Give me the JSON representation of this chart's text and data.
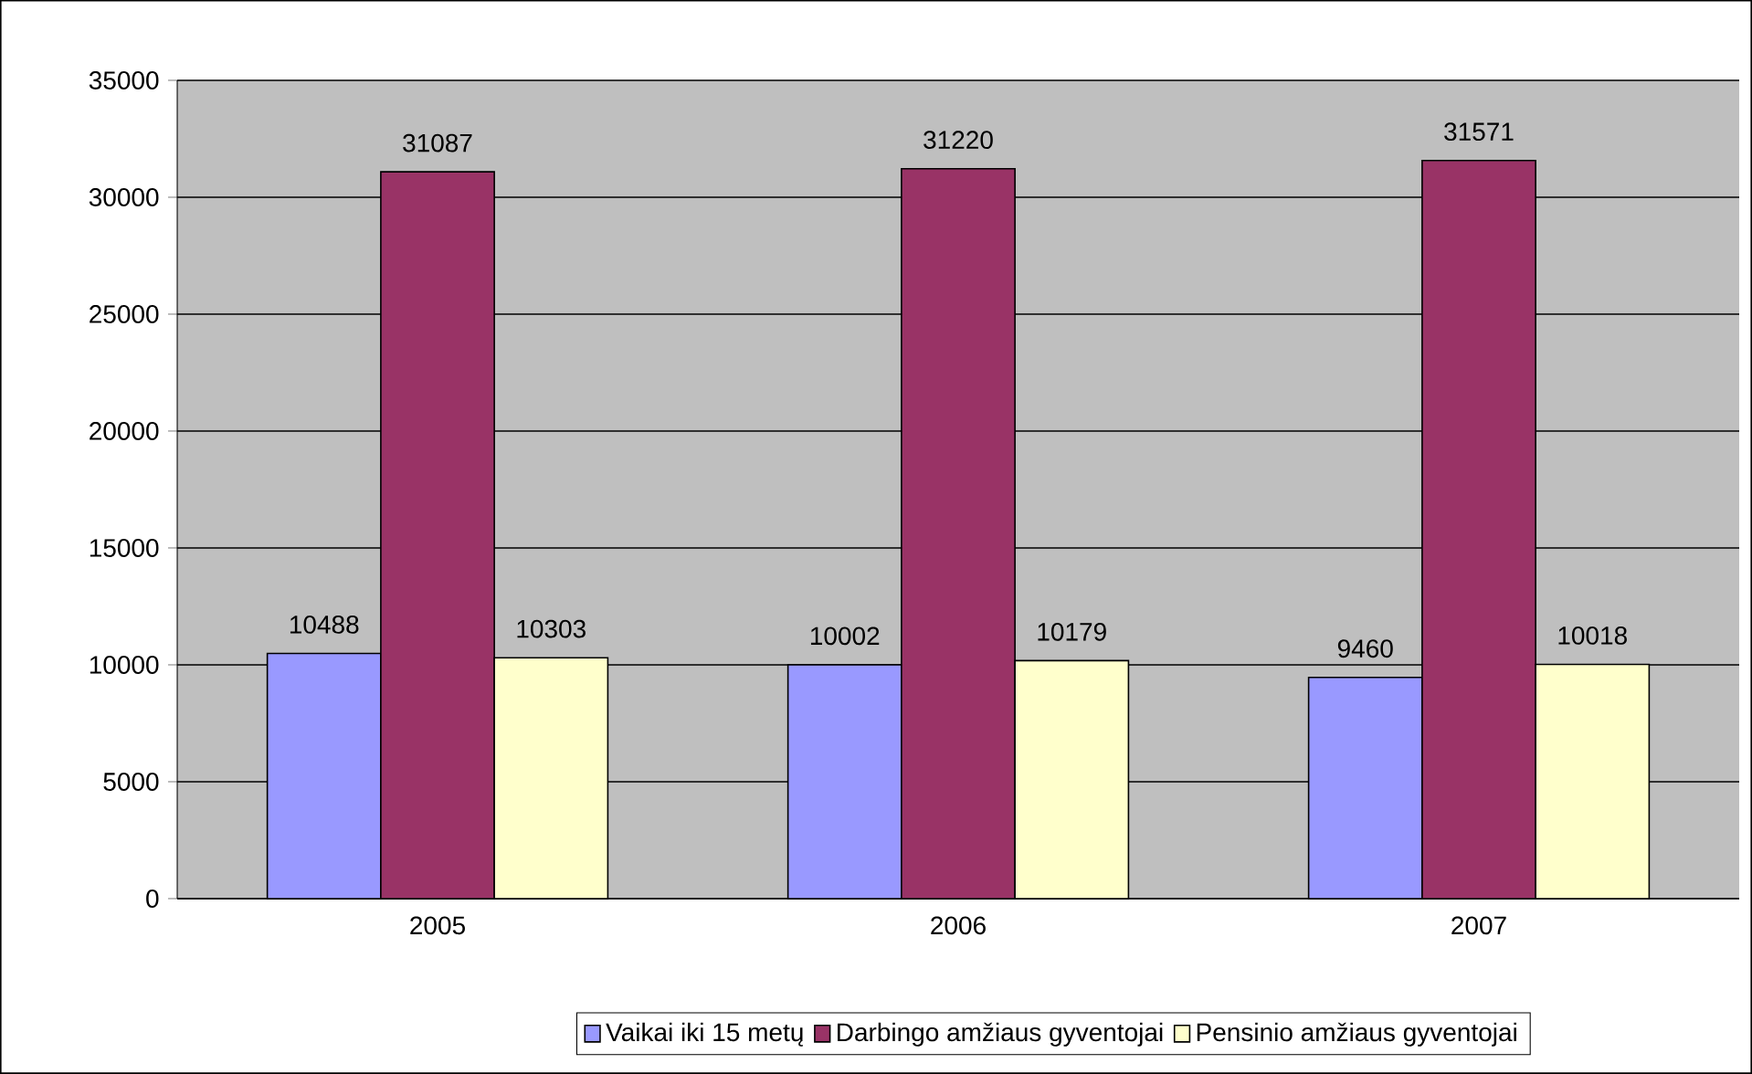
{
  "chart_data": {
    "type": "bar",
    "categories": [
      "2005",
      "2006",
      "2007"
    ],
    "series": [
      {
        "name": "Vaikai iki 15 metų",
        "color": "#9999ff",
        "values": [
          10488,
          10002,
          9460
        ]
      },
      {
        "name": "Darbingo amžiaus gyventojai",
        "color": "#993366",
        "values": [
          31087,
          31220,
          31571
        ]
      },
      {
        "name": "Pensinio amžiaus gyventojai",
        "color": "#ffffcc",
        "values": [
          10303,
          10179,
          10018
        ]
      }
    ],
    "ylim": [
      0,
      35000
    ],
    "yticks": [
      0,
      5000,
      10000,
      15000,
      20000,
      25000,
      30000,
      35000
    ],
    "grid": "y",
    "legend": "bottom",
    "data_labels": true
  }
}
